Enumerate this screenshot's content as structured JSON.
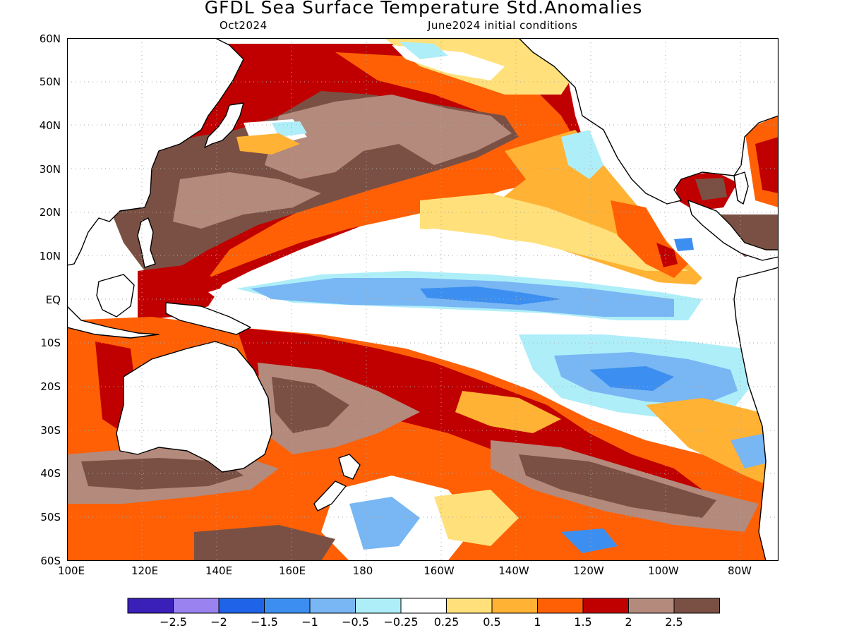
{
  "title": "GFDL Sea Surface Temperature Std.Anomalies",
  "subtitle_left": "Oct2024",
  "subtitle_right": "June2024 initial conditions",
  "lat_labels": [
    "60N",
    "50N",
    "40N",
    "30N",
    "20N",
    "10N",
    "EQ",
    "10S",
    "20S",
    "30S",
    "40S",
    "50S",
    "60S"
  ],
  "lon_labels": [
    "100E",
    "120E",
    "140E",
    "160E",
    "180",
    "160W",
    "140W",
    "120W",
    "100W",
    "80W"
  ],
  "extent": {
    "lon_min": 100,
    "lon_max": 290,
    "lat_min": -60,
    "lat_max": 60
  },
  "colorbar": {
    "colors": [
      "#3a1fb8",
      "#9a82f0",
      "#1e63e8",
      "#3c8ff0",
      "#78b6f4",
      "#aeeef8",
      "#ffffff",
      "#ffe07a",
      "#ffb233",
      "#ff6005",
      "#c00000",
      "#b38a7c",
      "#7b5044"
    ],
    "labels": [
      "-2.5",
      "-2",
      "-1.5",
      "-1",
      "-0.5",
      "-0.25",
      "0.25",
      "0.5",
      "1",
      "1.5",
      "2",
      "2.5"
    ]
  },
  "map_layer": {
    "type": "contour-filled",
    "land_color": "#ffffff",
    "coastline_color": "#000000",
    "grid": true,
    "regions": [
      "north-pacific-warm",
      "equatorial-cool-tongue",
      "south-pacific-warm",
      "southern-ocean-variable"
    ]
  }
}
